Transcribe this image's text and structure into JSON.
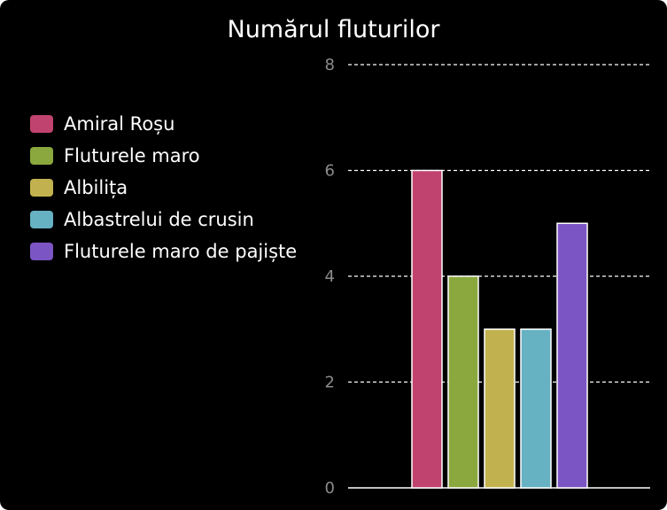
{
  "chart_data": {
    "type": "bar",
    "title": "Numărul fluturilor",
    "categories": [
      "Amiral Roșu",
      "Fluturele maro",
      "Albilița",
      "Albastrelui de crusin",
      "Fluturele maro de pajiște"
    ],
    "values": [
      6,
      4,
      3,
      3,
      5
    ],
    "colors": [
      "#c0436f",
      "#8aa83d",
      "#c2b24f",
      "#66b1c2",
      "#7c55c4"
    ],
    "yticks": [
      0,
      2,
      4,
      6,
      8
    ],
    "ylim": [
      0,
      8
    ],
    "grid": true,
    "legend_position": "left"
  }
}
